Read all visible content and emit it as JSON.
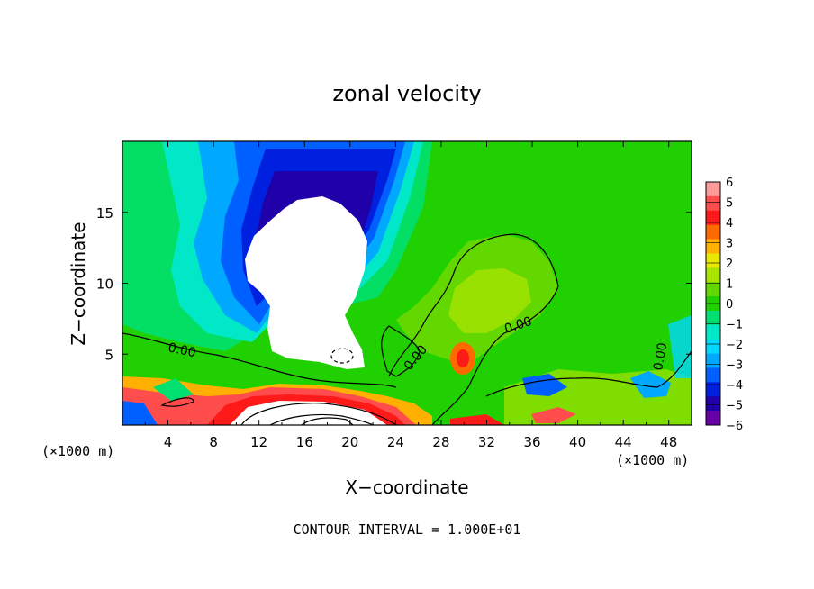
{
  "chart_data": {
    "type": "heatmap",
    "title": "zonal velocity",
    "xlabel": "X−coordinate",
    "ylabel": "Z−coordinate",
    "x_unit_left": "(×1000 m)",
    "x_unit_right": "(×1000 m)",
    "xlim": [
      0,
      50
    ],
    "ylim": [
      0,
      20
    ],
    "x_ticks": [
      4,
      8,
      12,
      16,
      20,
      24,
      28,
      32,
      36,
      40,
      44,
      48
    ],
    "y_ticks": [
      5,
      10,
      15
    ],
    "colorbar": {
      "min": -6,
      "max": 6,
      "labels": [
        "6",
        "5",
        "4",
        "3",
        "2",
        "1",
        "0",
        "−1",
        "−2",
        "−3",
        "−4",
        "−5",
        "−6"
      ],
      "colors": [
        "#ff9a9a",
        "#ff4c4c",
        "#ff1a1a",
        "#ff6a00",
        "#ffb000",
        "#e8e800",
        "#a8e400",
        "#62d800",
        "#20d000",
        "#00e070",
        "#00e8c8",
        "#00d8ff",
        "#00a8ff",
        "#0060ff",
        "#0020e0",
        "#2000a8",
        "#6a00a8"
      ]
    },
    "contour_labels": [
      "0.00",
      "0.00",
      "0.00",
      "0.00"
    ],
    "footer": "CONTOUR INTERVAL = 1.000E+01",
    "features": [
      {
        "kind": "min-region",
        "label": "white core (below −6)",
        "center": [
          16.5,
          10.5
        ]
      },
      {
        "kind": "neg-core",
        "label": "dashed contour",
        "center": [
          19,
          4.7
        ]
      },
      {
        "kind": "near-surface",
        "label": "strong positive band",
        "z_range": [
          0,
          2.5
        ]
      }
    ],
    "grid": false
  }
}
